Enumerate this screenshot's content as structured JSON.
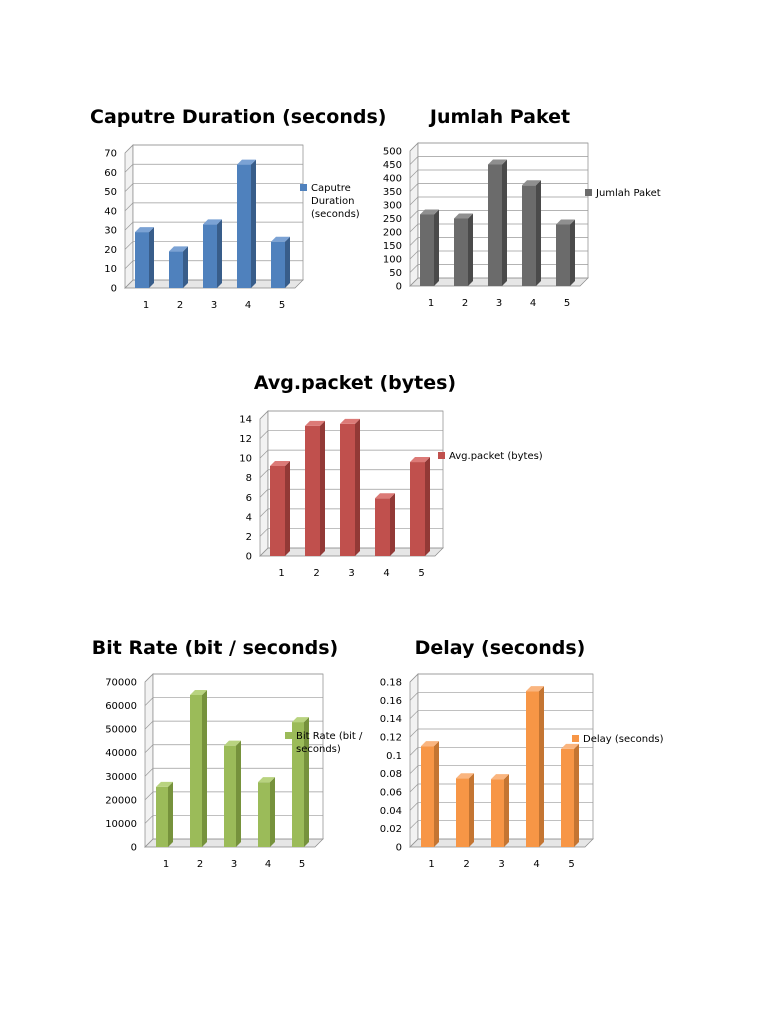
{
  "chart_data": [
    {
      "id": "capture",
      "type": "bar",
      "title": "Caputre Duration (seconds)",
      "categories": [
        "1",
        "2",
        "3",
        "4",
        "5"
      ],
      "series": [
        {
          "name": "Caputre Duration (seconds)",
          "values": [
            29,
            19,
            33,
            64,
            24
          ]
        }
      ],
      "legend_lines": [
        "Caputre",
        "Duration",
        "(seconds)"
      ],
      "yticks": [
        "0",
        "10",
        "20",
        "30",
        "40",
        "50",
        "60",
        "70"
      ],
      "ylim": [
        0,
        70
      ],
      "grid": true,
      "legend": "right",
      "color": "#4f81bd",
      "color_dark": "#385d8a",
      "color_light": "#7ba2d4"
    },
    {
      "id": "jumlah",
      "type": "bar",
      "title": "Jumlah Paket",
      "categories": [
        "1",
        "2",
        "3",
        "4",
        "5"
      ],
      "series": [
        {
          "name": "Jumlah Paket",
          "values": [
            265,
            250,
            450,
            373,
            228
          ]
        }
      ],
      "legend_lines": [
        "Jumlah Paket"
      ],
      "yticks": [
        "0",
        "50",
        "100",
        "150",
        "200",
        "250",
        "300",
        "350",
        "400",
        "450",
        "500"
      ],
      "ylim": [
        0,
        500
      ],
      "grid": true,
      "legend": "right",
      "color": "#6b6b6b",
      "color_dark": "#4a4a4a",
      "color_light": "#8f8f8f"
    },
    {
      "id": "avg",
      "type": "bar",
      "title": "Avg.packet (bytes)",
      "categories": [
        "1",
        "2",
        "3",
        "4",
        "5"
      ],
      "series": [
        {
          "name": "Avg.packet (bytes)",
          "values": [
            9.2,
            13.3,
            13.5,
            5.9,
            9.6
          ]
        }
      ],
      "legend_lines": [
        "Avg.packet (bytes)"
      ],
      "yticks": [
        "0",
        "2",
        "4",
        "6",
        "8",
        "10",
        "12",
        "14"
      ],
      "ylim": [
        0,
        14
      ],
      "grid": true,
      "legend": "right",
      "color": "#c0504d",
      "color_dark": "#923936",
      "color_light": "#dc7a77"
    },
    {
      "id": "bitrate",
      "type": "bar",
      "title": "Bit Rate (bit / seconds)",
      "categories": [
        "1",
        "2",
        "3",
        "4",
        "5"
      ],
      "series": [
        {
          "name": "Bit Rate (bit / seconds)",
          "values": [
            25500,
            64500,
            43000,
            27500,
            53000
          ]
        }
      ],
      "legend_lines": [
        "Bit Rate (bit /",
        "seconds)"
      ],
      "yticks": [
        "0",
        "10000",
        "20000",
        "30000",
        "40000",
        "50000",
        "60000",
        "70000"
      ],
      "ylim": [
        0,
        70000
      ],
      "grid": true,
      "legend": "right",
      "color": "#9bbb59",
      "color_dark": "#76923c",
      "color_light": "#b8d37f"
    },
    {
      "id": "delay",
      "type": "bar",
      "title": "Delay (seconds)",
      "categories": [
        "1",
        "2",
        "3",
        "4",
        "5"
      ],
      "series": [
        {
          "name": "Delay (seconds)",
          "values": [
            0.11,
            0.075,
            0.074,
            0.17,
            0.107
          ]
        }
      ],
      "legend_lines": [
        "Delay (seconds)"
      ],
      "yticks": [
        "0",
        "0.02",
        "0.04",
        "0.06",
        "0.08",
        "0.1",
        "0.12",
        "0.14",
        "0.16",
        "0.18"
      ],
      "ylim": [
        0,
        0.18
      ],
      "grid": true,
      "legend": "right",
      "color": "#f79646",
      "color_dark": "#c47532",
      "color_light": "#fab57f"
    }
  ]
}
